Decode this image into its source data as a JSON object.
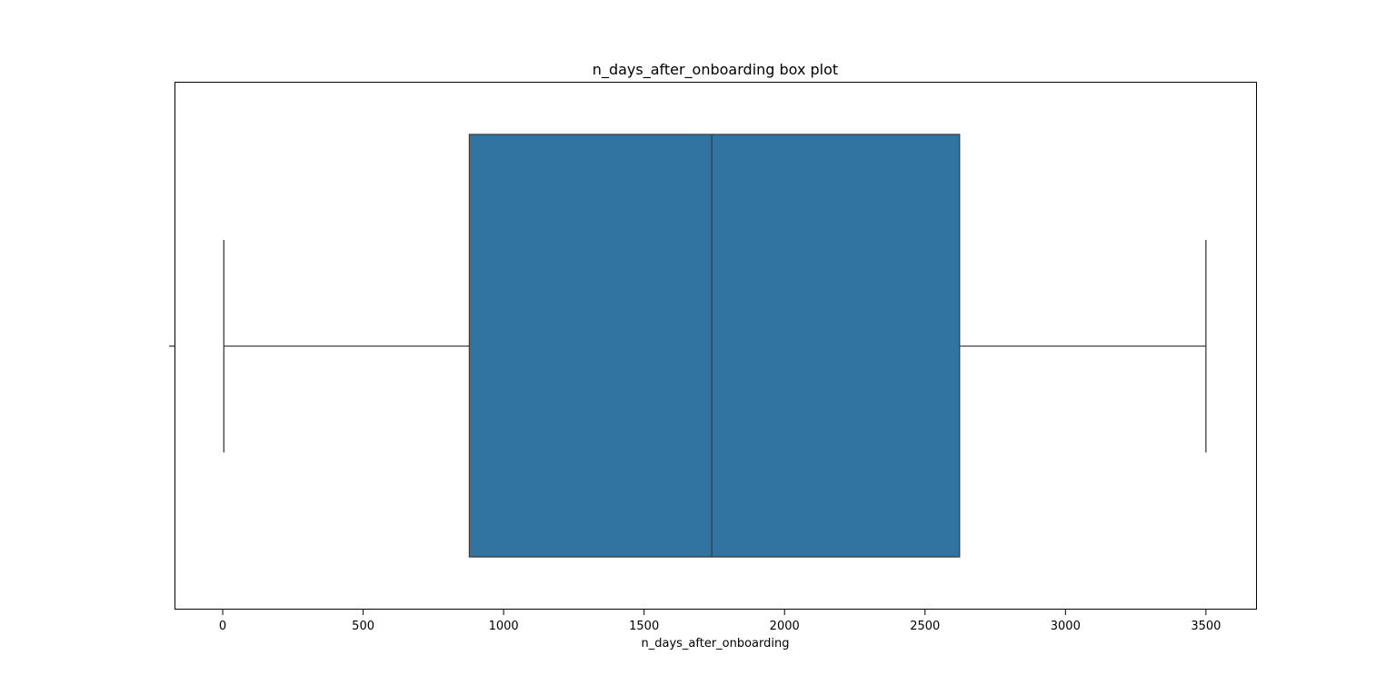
{
  "chart_data": {
    "type": "box",
    "title": "n_days_after_onboarding box plot",
    "xlabel": "n_days_after_onboarding",
    "ylabel": "",
    "orientation": "horizontal",
    "xlim": [
      -170,
      3680
    ],
    "xticks": [
      0,
      500,
      1000,
      1500,
      2000,
      2500,
      3000,
      3500
    ],
    "box": {
      "whisker_low": 4,
      "q1": 878,
      "median": 1741,
      "q3": 2623,
      "whisker_high": 3500
    },
    "box_color": "#3274a1",
    "line_color": "#3d3d3d",
    "grid": false
  }
}
